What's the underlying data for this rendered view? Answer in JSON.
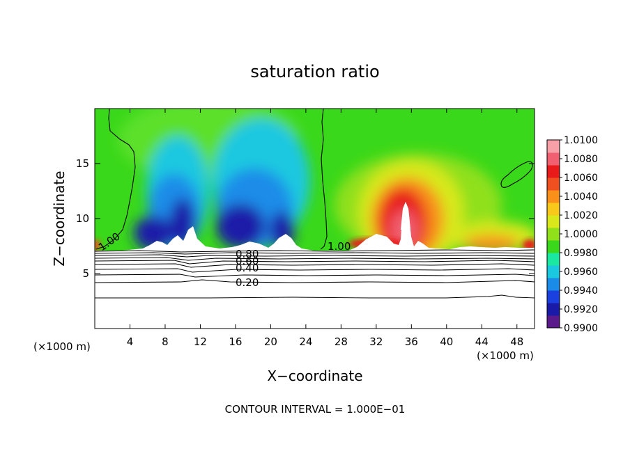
{
  "chart_data": {
    "type": "heatmap",
    "title": "saturation ratio",
    "xlabel": "X−coordinate",
    "ylabel": "Z−coordinate",
    "x_unit_left": "(×1000 m)",
    "x_unit_right": "(×1000 m)",
    "footer": "CONTOUR INTERVAL = 1.000E−01",
    "xlim": [
      0,
      50
    ],
    "ylim": [
      0,
      20
    ],
    "x_ticks": [
      "4",
      "8",
      "12",
      "16",
      "20",
      "24",
      "28",
      "32",
      "36",
      "40",
      "44",
      "48"
    ],
    "x_tick_values": [
      4,
      8,
      12,
      16,
      20,
      24,
      28,
      32,
      36,
      40,
      44,
      48
    ],
    "y_ticks": [
      "5",
      "10",
      "15"
    ],
    "y_tick_values": [
      5,
      10,
      15
    ],
    "colorbar": {
      "labels": [
        "1.0100",
        "1.0080",
        "1.0060",
        "1.0040",
        "1.0020",
        "1.0000",
        "0.9980",
        "0.9960",
        "0.9940",
        "0.9920",
        "0.9900"
      ],
      "values": [
        1.01,
        1.008,
        1.006,
        1.004,
        1.002,
        1.0,
        0.998,
        0.996,
        0.994,
        0.992,
        0.99
      ],
      "colors": [
        "#5a1a8c",
        "#1a1aa8",
        "#1a40e0",
        "#1a8ce8",
        "#1ac8e0",
        "#1ae8a0",
        "#3ad81a",
        "#90e01a",
        "#d8e81a",
        "#f8c81a",
        "#f8901a",
        "#f05020",
        "#e81a1a",
        "#f06070",
        "#f8a0a8"
      ]
    },
    "contour_labels": [
      "1.00",
      "1.00",
      "0.80",
      "0.60",
      "0.40",
      "0.20"
    ],
    "contour_label_values": [
      1.0,
      1.0,
      0.8,
      0.6,
      0.4,
      0.2
    ],
    "lower_contour_levels": [
      1.0,
      0.9,
      0.8,
      0.7,
      0.6,
      0.5,
      0.4,
      0.3,
      0.2,
      0.1
    ],
    "cloud_base_km": 7.3
  }
}
